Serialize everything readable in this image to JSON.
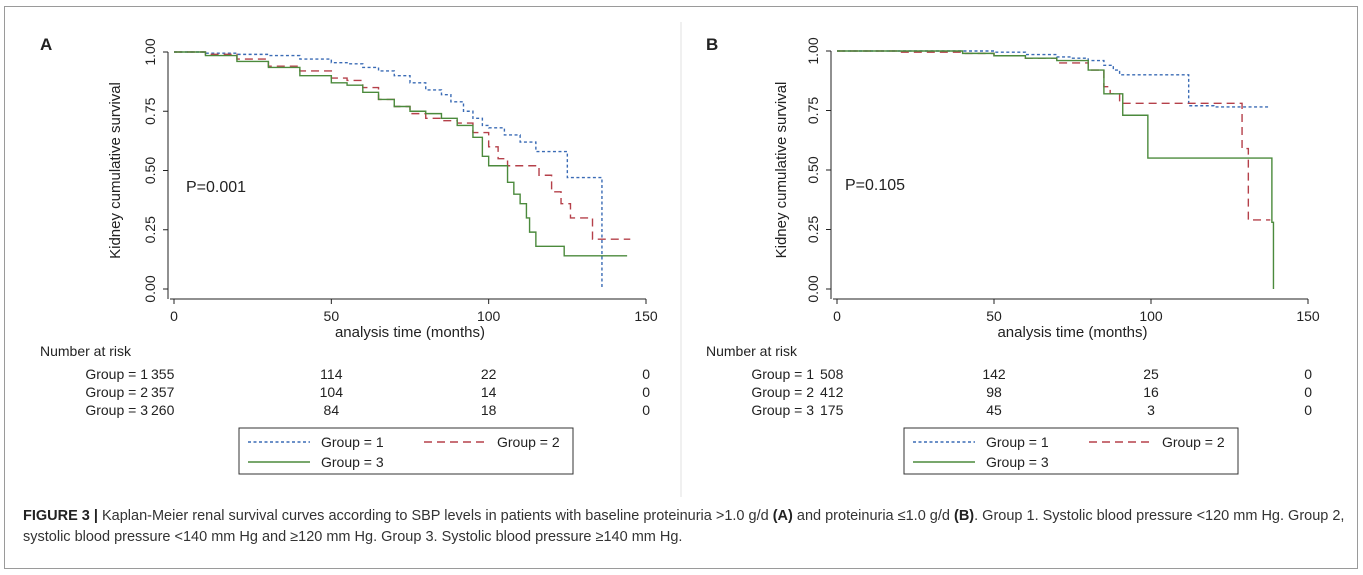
{
  "chart_data": [
    {
      "type": "line",
      "panel_label": "A",
      "ylabel": "Kidney cumulative survival",
      "xlabel": "analysis time (months)",
      "xlim": [
        0,
        150
      ],
      "ylim": [
        0,
        1
      ],
      "xticks": [
        "0",
        "50",
        "100",
        "150"
      ],
      "yticks": [
        "0.00",
        "0.25",
        "0.50",
        "0.75",
        "1.00"
      ],
      "annotation": "P=0.001",
      "grid": false,
      "legend_position": "bottom",
      "series": [
        {
          "name": "Group = 1",
          "color": "#3a6bb5",
          "dash": "dotted",
          "x": [
            0,
            10,
            20,
            30,
            40,
            50,
            55,
            60,
            65,
            70,
            75,
            80,
            85,
            88,
            92,
            95,
            98,
            100,
            105,
            110,
            115,
            120,
            125,
            130,
            135,
            136
          ],
          "y": [
            1.0,
            0.995,
            0.99,
            0.985,
            0.97,
            0.955,
            0.95,
            0.935,
            0.92,
            0.9,
            0.87,
            0.84,
            0.82,
            0.79,
            0.75,
            0.72,
            0.69,
            0.68,
            0.65,
            0.62,
            0.58,
            0.58,
            0.47,
            0.47,
            0.47,
            0.0
          ]
        },
        {
          "name": "Group = 2",
          "color": "#b5404a",
          "dash": "dashed",
          "x": [
            0,
            10,
            20,
            30,
            40,
            50,
            55,
            60,
            65,
            70,
            75,
            80,
            85,
            90,
            95,
            100,
            103,
            106,
            110,
            113,
            116,
            120,
            123,
            126,
            130,
            133,
            136,
            145
          ],
          "y": [
            1.0,
            0.99,
            0.97,
            0.94,
            0.92,
            0.89,
            0.88,
            0.85,
            0.8,
            0.77,
            0.74,
            0.72,
            0.71,
            0.7,
            0.66,
            0.6,
            0.55,
            0.52,
            0.52,
            0.52,
            0.48,
            0.41,
            0.36,
            0.3,
            0.3,
            0.21,
            0.21,
            0.21
          ]
        },
        {
          "name": "Group = 3",
          "color": "#4b8a3c",
          "dash": "solid",
          "x": [
            0,
            10,
            20,
            30,
            40,
            50,
            55,
            60,
            65,
            70,
            75,
            80,
            85,
            90,
            95,
            98,
            100,
            104,
            106,
            108,
            110,
            112,
            113,
            115,
            120,
            124,
            130,
            144
          ],
          "y": [
            1.0,
            0.985,
            0.96,
            0.935,
            0.9,
            0.87,
            0.86,
            0.83,
            0.8,
            0.77,
            0.75,
            0.74,
            0.72,
            0.69,
            0.64,
            0.56,
            0.52,
            0.52,
            0.45,
            0.4,
            0.36,
            0.3,
            0.24,
            0.18,
            0.18,
            0.14,
            0.14,
            0.14
          ]
        }
      ],
      "risk_table": {
        "title": "Number at risk",
        "x": [
          0,
          50,
          100,
          150
        ],
        "rows": [
          {
            "label": "Group = 1",
            "values": [
              "355",
              "114",
              "22",
              "0"
            ]
          },
          {
            "label": "Group = 2",
            "values": [
              "357",
              "104",
              "14",
              "0"
            ]
          },
          {
            "label": "Group = 3",
            "values": [
              "260",
              "84",
              "18",
              "0"
            ]
          }
        ]
      }
    },
    {
      "type": "line",
      "panel_label": "B",
      "ylabel": "Kidney cumulative survival",
      "xlabel": "analysis time (months)",
      "xlim": [
        0,
        150
      ],
      "ylim": [
        0,
        1
      ],
      "xticks": [
        "0",
        "50",
        "100",
        "150"
      ],
      "yticks": [
        "0.00",
        "0.25",
        "0.50",
        "0.75",
        "1.00"
      ],
      "annotation": "P=0.105",
      "grid": false,
      "legend_position": "bottom",
      "series": [
        {
          "name": "Group = 1",
          "color": "#3a6bb5",
          "dash": "dotted",
          "x": [
            0,
            20,
            40,
            50,
            60,
            70,
            75,
            80,
            85,
            88,
            90,
            100,
            110,
            112,
            115,
            120,
            130,
            138
          ],
          "y": [
            1.0,
            1.0,
            1.0,
            0.995,
            0.985,
            0.975,
            0.97,
            0.96,
            0.94,
            0.92,
            0.9,
            0.9,
            0.9,
            0.77,
            0.77,
            0.765,
            0.765,
            0.765
          ]
        },
        {
          "name": "Group = 2",
          "color": "#b5404a",
          "dash": "dashed",
          "x": [
            0,
            20,
            40,
            50,
            60,
            70,
            80,
            85,
            87,
            90,
            100,
            110,
            120,
            127,
            129,
            131,
            134,
            138
          ],
          "y": [
            1.0,
            0.995,
            0.99,
            0.98,
            0.97,
            0.95,
            0.92,
            0.85,
            0.82,
            0.78,
            0.78,
            0.78,
            0.78,
            0.78,
            0.59,
            0.29,
            0.29,
            0.29
          ]
        },
        {
          "name": "Group = 3",
          "color": "#4b8a3c",
          "dash": "solid",
          "x": [
            0,
            20,
            40,
            50,
            60,
            70,
            80,
            85,
            88,
            91,
            95,
            99,
            105,
            110,
            120,
            130,
            138,
            138.5,
            139
          ],
          "y": [
            1.0,
            1.0,
            0.99,
            0.98,
            0.97,
            0.96,
            0.92,
            0.82,
            0.82,
            0.73,
            0.73,
            0.55,
            0.55,
            0.55,
            0.55,
            0.55,
            0.55,
            0.28,
            0.0
          ]
        }
      ],
      "risk_table": {
        "title": "Number at risk",
        "x": [
          0,
          50,
          100,
          150
        ],
        "rows": [
          {
            "label": "Group = 1",
            "values": [
              "508",
              "142",
              "25",
              "0"
            ]
          },
          {
            "label": "Group = 2",
            "values": [
              "412",
              "98",
              "16",
              "0"
            ]
          },
          {
            "label": "Group = 3",
            "values": [
              "175",
              "45",
              "3",
              "0"
            ]
          }
        ]
      }
    }
  ],
  "caption": {
    "figure_label": "FIGURE 3 |",
    "part1": " Kaplan-Meier renal survival curves according to SBP levels in patients with baseline proteinuria >1.0 g/d ",
    "ref_a": "(A)",
    "part2": " and proteinuria ≤1.0 g/d ",
    "ref_b": "(B)",
    "part3": ". Group 1. Systolic blood pressure <120 mm Hg. Group 2, systolic blood pressure <140 mm Hg and ≥120 mm Hg. Group 3. Systolic blood pressure ≥140 mm Hg."
  }
}
